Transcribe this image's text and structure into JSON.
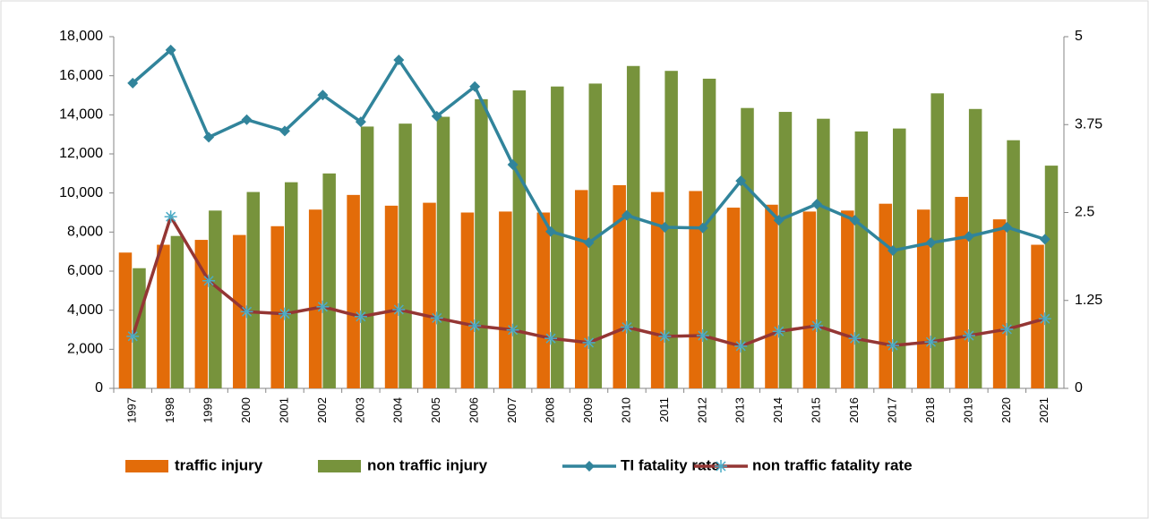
{
  "chart_data": {
    "type": "bar_line",
    "categories": [
      "1997",
      "1998",
      "1999",
      "2000",
      "2001",
      "2002",
      "2003",
      "2004",
      "2005",
      "2006",
      "2007",
      "2008",
      "2009",
      "2010",
      "2011",
      "2012",
      "2013",
      "2014",
      "2015",
      "2016",
      "2017",
      "2018",
      "2019",
      "2020",
      "2021"
    ],
    "series": [
      {
        "name": "traffic injury",
        "color": "#e36c09",
        "kind": "bar",
        "values": [
          6950,
          7350,
          7600,
          7850,
          8300,
          9150,
          9900,
          9350,
          9500,
          9000,
          9050,
          9000,
          10150,
          10400,
          10050,
          10100,
          9250,
          9400,
          9050,
          9100,
          9450,
          9150,
          9800,
          8650,
          7350
        ]
      },
      {
        "name": "non traffic injury",
        "color": "#77933c",
        "kind": "bar",
        "values": [
          6150,
          7800,
          9100,
          10050,
          10550,
          11000,
          13400,
          13550,
          13900,
          14800,
          15250,
          15450,
          15600,
          16500,
          16250,
          15850,
          14350,
          14150,
          13800,
          13150,
          13300,
          15100,
          14300,
          12700,
          11400
        ]
      },
      {
        "name": "TI fatality rate",
        "color": "#31849b",
        "kind": "line",
        "marker": "diamond",
        "axis": "y2",
        "values": [
          4.34,
          4.81,
          3.57,
          3.82,
          3.66,
          4.17,
          3.79,
          4.67,
          3.87,
          4.29,
          3.18,
          2.23,
          2.07,
          2.46,
          2.29,
          2.28,
          2.95,
          2.39,
          2.62,
          2.39,
          1.96,
          2.07,
          2.16,
          2.29,
          2.12
        ]
      },
      {
        "name": "non traffic fatality rate",
        "color": "#943634",
        "markerColor": "#4bacc6",
        "kind": "line",
        "marker": "asterisk",
        "axis": "y2",
        "values": [
          0.74,
          2.44,
          1.53,
          1.09,
          1.06,
          1.16,
          1.02,
          1.12,
          1.0,
          0.89,
          0.83,
          0.71,
          0.65,
          0.87,
          0.74,
          0.75,
          0.6,
          0.81,
          0.89,
          0.71,
          0.61,
          0.66,
          0.75,
          0.84,
          0.99
        ]
      }
    ],
    "ylim": [
      0,
      18000
    ],
    "yticks": [
      0,
      {
        "value": 2000,
        "label": "2,000"
      },
      {
        "value": 4000,
        "label": "4,000"
      },
      {
        "value": 6000,
        "label": "6,000"
      },
      {
        "value": 8000,
        "label": "8,000"
      },
      {
        "value": 10000,
        "label": "10,000"
      },
      {
        "value": 12000,
        "label": "12,000"
      },
      {
        "value": 14000,
        "label": "14,000"
      },
      {
        "value": 16000,
        "label": "16,000"
      },
      {
        "value": 18000,
        "label": "18,000"
      }
    ],
    "y2lim": [
      0,
      5
    ],
    "y2ticks": [
      0,
      1.25,
      2.5,
      3.75,
      5
    ],
    "legend": "bottom"
  }
}
